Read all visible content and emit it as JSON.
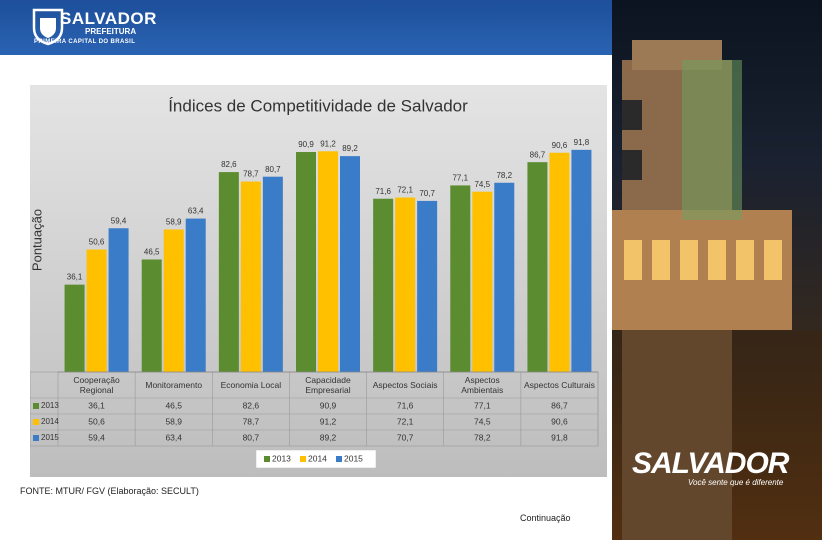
{
  "header": {
    "brand": "SALVADOR",
    "sub": "PREFEITURA",
    "tagline": "PRIMEIRA CAPITAL DO BRASIL"
  },
  "photo": {
    "logo": "SALVADOR",
    "slogan": "Você sente que é diferente"
  },
  "chart_data": {
    "type": "bar",
    "title": "Índices de Competitividade de Salvador",
    "y_label": "Pontuação",
    "categories": [
      "Cooperação Regional",
      "Monitoramento",
      "Economia Local",
      "Capacidade Empresarial",
      "Aspectos Sociais",
      "Aspectos Ambientais",
      "Aspectos Culturais"
    ],
    "series": [
      {
        "name": "2013",
        "color": "#5b8c30",
        "values": [
          36.1,
          46.5,
          82.6,
          90.9,
          71.6,
          77.1,
          86.7
        ],
        "value_labels": [
          "36,1",
          "46,5",
          "82,6",
          "90,9",
          "71,6",
          "77,1",
          "86,7"
        ]
      },
      {
        "name": "2014",
        "color": "#ffc000",
        "values": [
          50.6,
          58.9,
          78.7,
          91.2,
          72.1,
          74.5,
          90.6
        ],
        "value_labels": [
          "50,6",
          "58,9",
          "78,7",
          "91,2",
          "72,1",
          "74,5",
          "90,6"
        ]
      },
      {
        "name": "2015",
        "color": "#3a7cc7",
        "values": [
          59.4,
          63.4,
          80.7,
          89.2,
          70.7,
          78.2,
          91.8
        ],
        "value_labels": [
          "59,4",
          "63,4",
          "80,7",
          "89,2",
          "70,7",
          "78,2",
          "91,8"
        ]
      }
    ],
    "ylim": [
      0,
      100
    ],
    "legend": "bottom"
  },
  "source": "FONTE: MTUR/ FGV (Elaboração: SECULT)",
  "continuation": "Continuação"
}
